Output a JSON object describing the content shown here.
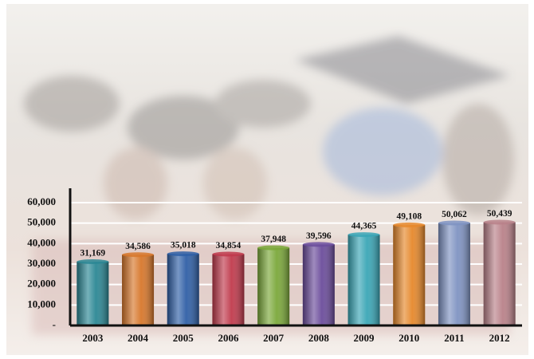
{
  "chart_data": {
    "type": "bar",
    "categories": [
      "2003",
      "2004",
      "2005",
      "2006",
      "2007",
      "2008",
      "2009",
      "2010",
      "2011",
      "2012"
    ],
    "values": [
      31169,
      34586,
      35018,
      34854,
      37948,
      39596,
      44365,
      49108,
      50062,
      50439
    ],
    "value_labels": [
      "31,169",
      "34,586",
      "35,018",
      "34,854",
      "37,948",
      "39,596",
      "44,365",
      "49,108",
      "50,062",
      "50,439"
    ],
    "colors": [
      "#2b8794",
      "#d7772b",
      "#2f5fa6",
      "#c03a4c",
      "#7ba83a",
      "#6b4c9b",
      "#3aa6b6",
      "#e6882b",
      "#7f93c2",
      "#b98189"
    ],
    "ylim": [
      0,
      67000
    ],
    "yticks": [
      {
        "value": 0,
        "label": "-"
      },
      {
        "value": 10000,
        "label": "10,000"
      },
      {
        "value": 20000,
        "label": "20,000"
      },
      {
        "value": 30000,
        "label": "30,000"
      },
      {
        "value": 40000,
        "label": "40,000"
      },
      {
        "value": 50000,
        "label": "50,000"
      },
      {
        "value": 60000,
        "label": "60,000"
      }
    ],
    "grid": true
  }
}
